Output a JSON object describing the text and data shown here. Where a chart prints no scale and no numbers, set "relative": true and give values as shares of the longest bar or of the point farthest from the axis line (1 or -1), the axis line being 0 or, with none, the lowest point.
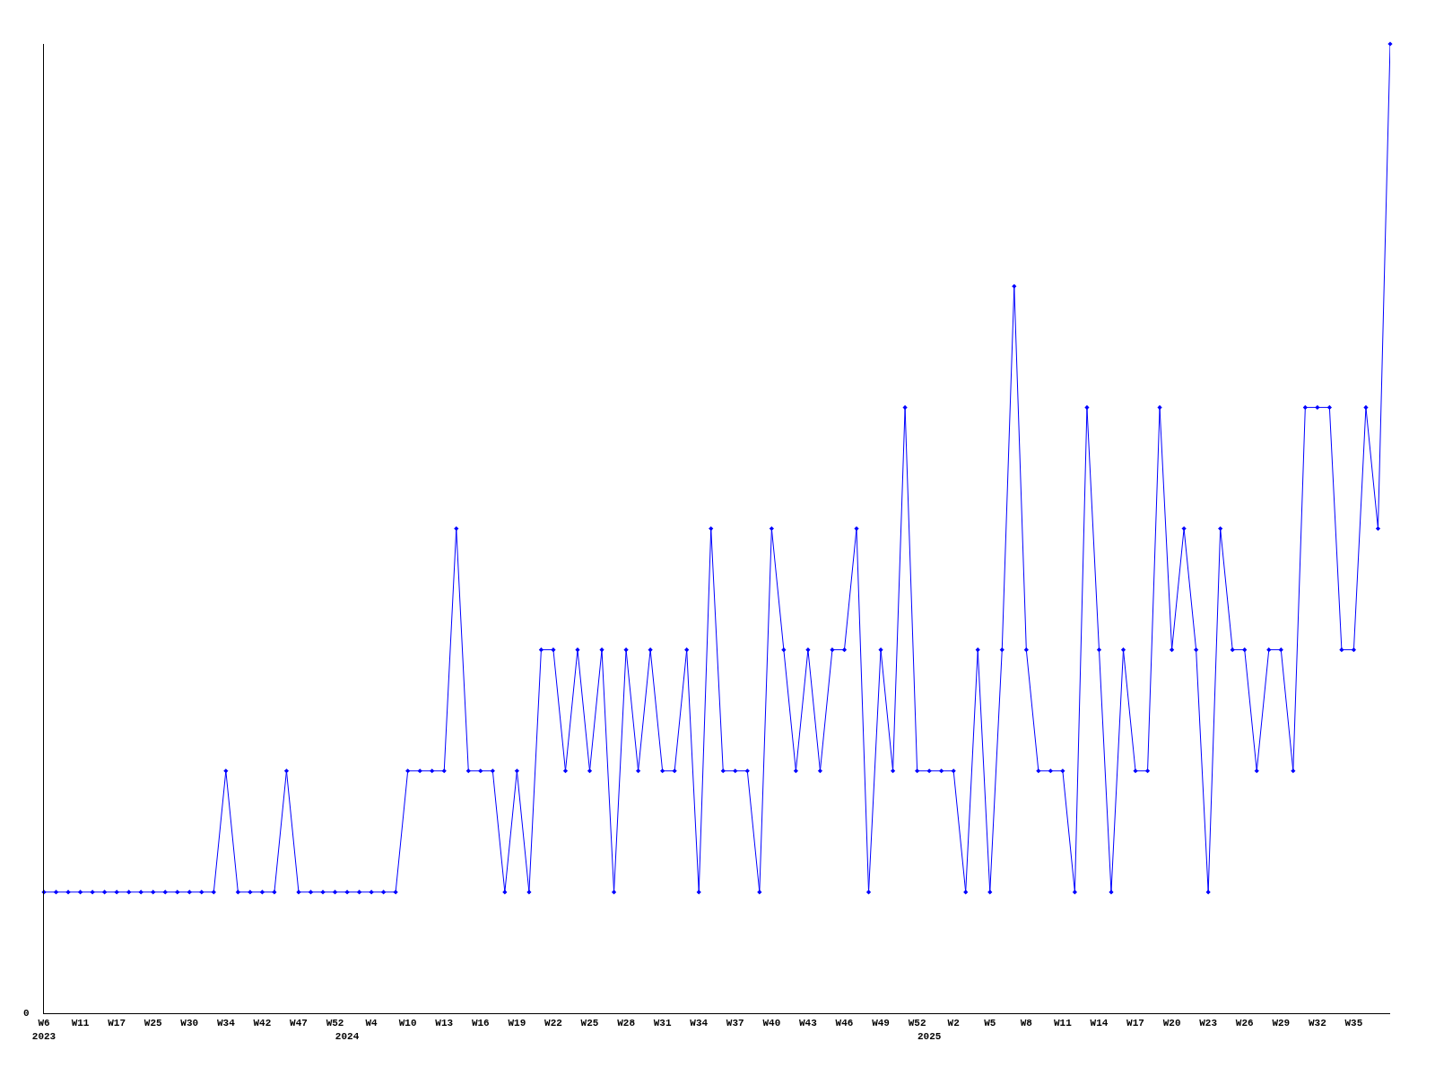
{
  "chart_data": {
    "type": "line",
    "relative": true,
    "color": "#0000ff",
    "marker": "diamond",
    "line_style": "solid",
    "grid": false,
    "annotations": [
      "0"
    ],
    "categories": [
      "W6\n2023",
      null,
      null,
      "W11",
      null,
      null,
      "W17",
      null,
      null,
      "W25",
      null,
      null,
      "W30",
      null,
      null,
      "W34",
      null,
      null,
      "W42",
      null,
      null,
      "W47",
      null,
      null,
      "W52",
      "\n2024",
      null,
      "W4",
      null,
      null,
      "W10",
      null,
      null,
      "W13",
      null,
      null,
      "W16",
      null,
      null,
      "W19",
      null,
      null,
      "W22",
      null,
      null,
      "W25",
      null,
      null,
      "W28",
      null,
      null,
      "W31",
      null,
      null,
      "W34",
      null,
      null,
      "W37",
      null,
      null,
      "W40",
      null,
      null,
      "W43",
      null,
      null,
      "W46",
      null,
      null,
      "W49",
      null,
      null,
      "W52",
      "\n2025",
      null,
      "W2",
      null,
      null,
      "W5",
      null,
      null,
      "W8",
      null,
      null,
      "W11",
      null,
      null,
      "W14",
      null,
      null,
      "W17",
      null,
      null,
      "W20",
      null,
      null,
      "W23",
      null,
      null,
      "W26",
      null,
      null,
      "W29",
      null,
      null,
      "W32",
      null,
      null,
      "W35",
      null,
      null,
      null
    ],
    "values": [
      0.125,
      0.125,
      0.125,
      0.125,
      0.125,
      0.125,
      0.125,
      0.125,
      0.125,
      0.125,
      0.125,
      0.125,
      0.125,
      0.125,
      0.125,
      0.25,
      0.125,
      0.125,
      0.125,
      0.125,
      0.25,
      0.125,
      0.125,
      0.125,
      0.125,
      0.125,
      0.125,
      0.125,
      0.125,
      0.125,
      0.25,
      0.25,
      0.25,
      0.25,
      0.5,
      0.25,
      0.25,
      0.25,
      0.125,
      0.25,
      0.125,
      0.375,
      0.375,
      0.25,
      0.375,
      0.25,
      0.375,
      0.125,
      0.375,
      0.25,
      0.375,
      0.25,
      0.25,
      0.375,
      0.125,
      0.5,
      0.25,
      0.25,
      0.25,
      0.125,
      0.5,
      0.375,
      0.25,
      0.375,
      0.25,
      0.375,
      0.375,
      0.5,
      0.125,
      0.375,
      0.25,
      0.625,
      0.25,
      0.25,
      0.25,
      0.25,
      0.125,
      0.375,
      0.125,
      0.375,
      0.75,
      0.375,
      0.25,
      0.25,
      0.25,
      0.125,
      0.625,
      0.375,
      0.125,
      0.375,
      0.25,
      0.25,
      0.625,
      0.375,
      0.5,
      0.375,
      0.125,
      0.5,
      0.375,
      0.375,
      0.25,
      0.375,
      0.375,
      0.25,
      0.625,
      0.625,
      0.625,
      0.375,
      0.375,
      0.625,
      0.5,
      1
    ]
  }
}
